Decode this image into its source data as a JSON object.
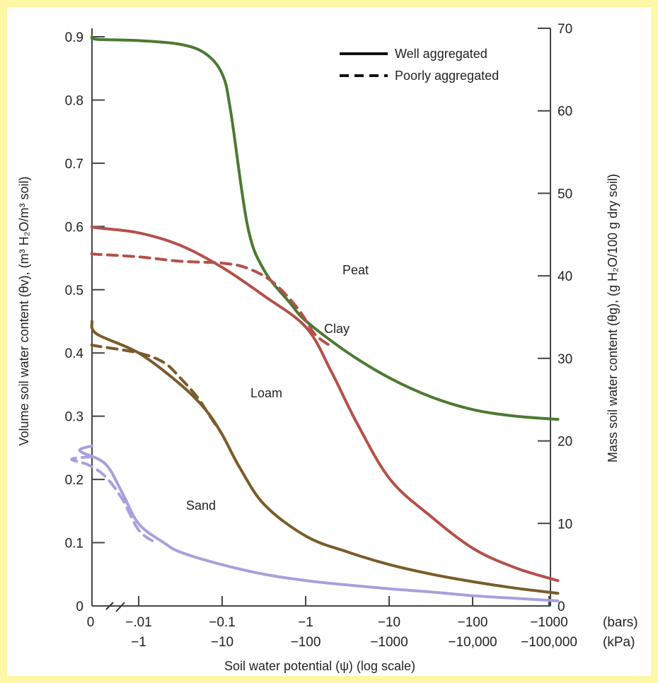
{
  "chart_data": {
    "type": "line",
    "xlabel": "Soil water potential (ψ) (log scale)",
    "ylabel_left": "Volume soil water content (θv), (m³ H₂O/m³ soil)",
    "ylabel_right": "Mass soil water content (θg), (g H₂O/100 g dry soil)",
    "x_ticks_bars": [
      "0",
      "−.01",
      "−0.1",
      "−1",
      "−10",
      "−100",
      "−1000"
    ],
    "x_ticks_kpa": [
      "−1",
      "−10",
      "−100",
      "−1000",
      "−10,000",
      "−100,000"
    ],
    "x_unit_bars": "(bars)",
    "x_unit_kpa": "(kPa)",
    "y_left_ticks": [
      "0",
      "0.1",
      "0.2",
      "0.3",
      "0.4",
      "0.5",
      "0.6",
      "0.7",
      "0.8",
      "0.9"
    ],
    "y_right_ticks": [
      "0",
      "10",
      "20",
      "30",
      "40",
      "50",
      "60",
      "70"
    ],
    "ylim_left": [
      0,
      0.9
    ],
    "ylim_right": [
      0,
      70
    ],
    "legend": {
      "position": "top-right",
      "entries": [
        {
          "label": "Well aggregated",
          "style": "solid"
        },
        {
          "label": "Poorly aggregated",
          "style": "dashed"
        }
      ]
    },
    "series": [
      {
        "name": "Peat",
        "style": "solid",
        "color": "#4a7a32",
        "x": [
          -1,
          -0.5,
          0,
          0.5,
          0.8,
          1,
          1.1,
          1.3,
          1.5,
          1.8,
          2,
          2.5,
          3,
          3.5,
          4,
          4.5,
          5
        ],
        "y": [
          0.9,
          0.896,
          0.894,
          0.888,
          0.873,
          0.84,
          0.78,
          0.6,
          0.53,
          0.48,
          0.45,
          0.4,
          0.36,
          0.33,
          0.31,
          0.3,
          0.295
        ]
      },
      {
        "name": "Clay",
        "style": "solid",
        "color": "#b4504a",
        "x": [
          -1,
          -0.5,
          0,
          0.5,
          1,
          1.5,
          2,
          2.3,
          2.6,
          3,
          3.5,
          4,
          4.5,
          5
        ],
        "y": [
          0.6,
          0.598,
          0.59,
          0.57,
          0.535,
          0.49,
          0.44,
          0.37,
          0.29,
          0.2,
          0.14,
          0.09,
          0.06,
          0.04
        ]
      },
      {
        "name": "Clay",
        "style": "dashed",
        "color": "#b4504a",
        "x": [
          -1,
          -0.5,
          0,
          0.5,
          1,
          1.3,
          1.6,
          1.9,
          2.1,
          2.3
        ],
        "y": [
          0.557,
          0.556,
          0.552,
          0.545,
          0.542,
          0.534,
          0.512,
          0.47,
          0.43,
          0.41
        ]
      },
      {
        "name": "Loam",
        "style": "solid",
        "color": "#7a5b2a",
        "x": [
          -1,
          -0.5,
          0,
          0.5,
          0.8,
          1,
          1.2,
          1.5,
          2,
          2.5,
          3,
          3.5,
          4,
          4.5,
          5
        ],
        "y": [
          0.45,
          0.43,
          0.4,
          0.35,
          0.31,
          0.27,
          0.22,
          0.16,
          0.11,
          0.085,
          0.065,
          0.05,
          0.038,
          0.028,
          0.02
        ]
      },
      {
        "name": "Loam",
        "style": "dashed",
        "color": "#7a5b2a",
        "x": [
          -1,
          -0.5,
          0,
          0.3,
          0.5,
          0.7,
          0.85,
          0.95
        ],
        "y": [
          0.413,
          0.411,
          0.4,
          0.385,
          0.36,
          0.33,
          0.3,
          0.28
        ]
      },
      {
        "name": "Sand",
        "style": "solid",
        "color": "#a8a0dc",
        "x": [
          -1,
          -0.7,
          -0.4,
          -0.2,
          0,
          0.3,
          0.5,
          1,
          1.5,
          2,
          2.5,
          3,
          3.5,
          4,
          4.5,
          5
        ],
        "y": [
          0.253,
          0.245,
          0.225,
          0.18,
          0.13,
          0.1,
          0.085,
          0.065,
          0.05,
          0.04,
          0.033,
          0.027,
          0.022,
          0.016,
          0.012,
          0.008
        ]
      },
      {
        "name": "Sand",
        "style": "dashed",
        "color": "#a8a0dc",
        "x": [
          -1,
          -0.8,
          -0.6,
          -0.4,
          -0.2,
          0,
          0.2
        ],
        "y": [
          0.236,
          0.232,
          0.223,
          0.205,
          0.17,
          0.12,
          0.1
        ]
      }
    ],
    "annotations": [
      "Peat",
      "Clay",
      "Loam",
      "Sand"
    ]
  }
}
